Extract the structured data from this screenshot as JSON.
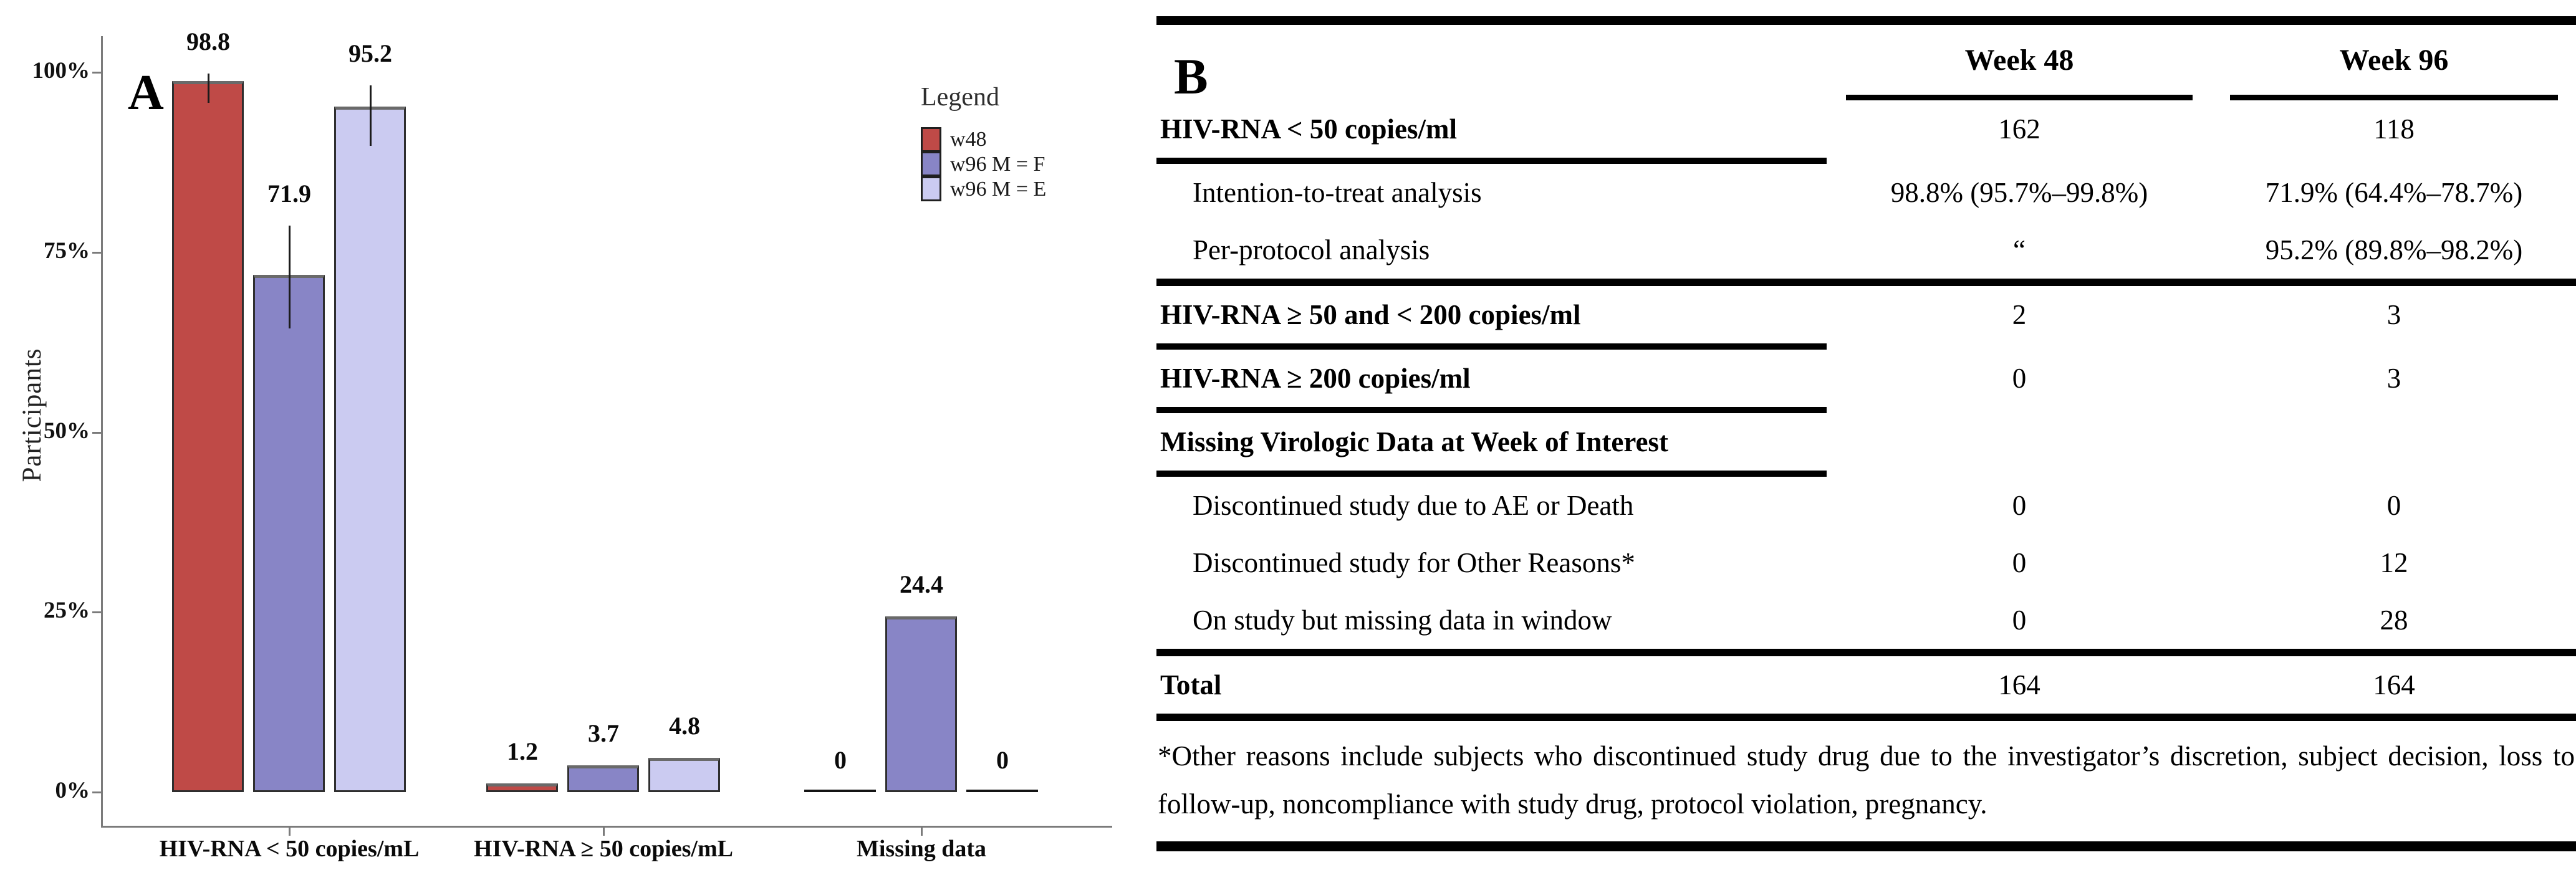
{
  "chart_data": {
    "type": "bar",
    "panel_label": "A",
    "title": "",
    "xlabel": "",
    "ylabel": "Participants",
    "ylim": [
      0,
      105
    ],
    "yticks_percent": [
      0,
      25,
      50,
      75,
      100
    ],
    "ytick_labels": [
      "0%",
      "25%",
      "50%",
      "75%",
      "100%"
    ],
    "grid": false,
    "legend_title": "Legend",
    "legend_position": "upper right",
    "axis_color": "#7b7b7b",
    "categories": [
      "HIV-RNA < 50 copies/mL",
      "HIV-RNA ≥ 50 copies/mL",
      "Missing data"
    ],
    "series": [
      {
        "name": "w48",
        "color": "#bf4a47",
        "values": [
          98.8,
          1.2,
          0
        ],
        "ci": [
          [
            95.7,
            99.8
          ],
          null,
          null
        ]
      },
      {
        "name": "w96 M = F",
        "color": "#8885c6",
        "values": [
          71.9,
          3.7,
          24.4
        ],
        "ci": [
          [
            64.4,
            78.7
          ],
          null,
          null
        ]
      },
      {
        "name": "w96 M = E",
        "color": "#cbcbf1",
        "values": [
          95.2,
          4.8,
          0
        ],
        "ci": [
          [
            89.8,
            98.2
          ],
          null,
          null
        ]
      }
    ]
  },
  "table": {
    "panel_label": "B",
    "columns": [
      "Week 48",
      "Week 96"
    ],
    "rows": [
      {
        "label": "HIV-RNA < 50 copies/ml",
        "week48": "162",
        "week96": "118",
        "style": "section",
        "underline": true
      },
      {
        "label": "Intention-to-treat analysis",
        "week48": "98.8% (95.7%–99.8%)",
        "week96": "71.9% (64.4%–78.7%)",
        "style": "sub"
      },
      {
        "label": "Per-protocol analysis",
        "week48": "“",
        "week96": "95.2% (89.8%–98.2%)",
        "style": "sub",
        "rule_after": true
      },
      {
        "label": "HIV-RNA ≥ 50 and < 200 copies/ml",
        "week48": "2",
        "week96": "3",
        "style": "section",
        "underline": true
      },
      {
        "label": "HIV-RNA ≥ 200 copies/ml",
        "week48": "0",
        "week96": "3",
        "style": "section",
        "underline": true
      },
      {
        "label": "Missing Virologic Data at Week of Interest",
        "week48": "",
        "week96": "",
        "style": "section",
        "underline": true
      },
      {
        "label": "Discontinued study due to AE or Death",
        "week48": "0",
        "week96": "0",
        "style": "sub"
      },
      {
        "label": "Discontinued study for Other Reasons*",
        "week48": "0",
        "week96": "12",
        "style": "sub"
      },
      {
        "label": "On study but missing data in window",
        "week48": "0",
        "week96": "28",
        "style": "sub",
        "rule_after": true
      },
      {
        "label": "Total",
        "week48": "164",
        "week96": "164",
        "style": "section",
        "rule_after": true
      }
    ],
    "footnote": "*Other reasons include subjects who discontinued study drug due to the investigator’s discretion, subject decision, loss to follow-up, noncompliance with study drug, protocol violation, pregnancy."
  }
}
